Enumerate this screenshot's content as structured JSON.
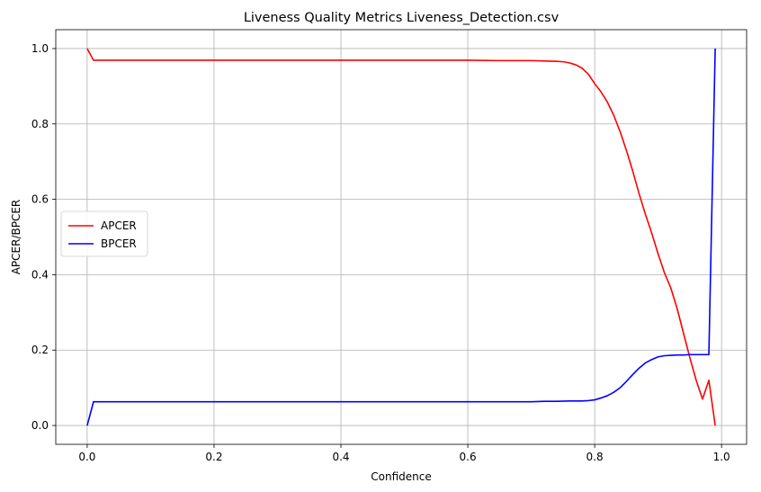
{
  "chart_data": {
    "type": "line",
    "title": "Liveness Quality Metrics Liveness_Detection.csv",
    "xlabel": "Confidence",
    "ylabel": "APCER/BPCER",
    "xlim": [
      -0.0495,
      1.0395
    ],
    "ylim": [
      -0.05,
      1.05
    ],
    "xticks": [
      0.0,
      0.2,
      0.4,
      0.6,
      0.8,
      1.0
    ],
    "xtick_labels": [
      "0.0",
      "0.2",
      "0.4",
      "0.6",
      "0.8",
      "1.0"
    ],
    "yticks": [
      0.0,
      0.2,
      0.4,
      0.6,
      0.8,
      1.0
    ],
    "ytick_labels": [
      "0.0",
      "0.2",
      "0.4",
      "0.6",
      "0.8",
      "1.0"
    ],
    "grid": true,
    "legend_position": "center-left",
    "series": [
      {
        "name": "APCER",
        "color": "#ff0000",
        "x": [
          0.0,
          0.01,
          0.1,
          0.2,
          0.3,
          0.4,
          0.5,
          0.6,
          0.65,
          0.7,
          0.72,
          0.74,
          0.75,
          0.76,
          0.77,
          0.78,
          0.79,
          0.8,
          0.81,
          0.82,
          0.83,
          0.84,
          0.85,
          0.86,
          0.87,
          0.88,
          0.89,
          0.9,
          0.91,
          0.92,
          0.93,
          0.94,
          0.95,
          0.96,
          0.97,
          0.98,
          0.99
        ],
        "y": [
          1.0,
          0.969,
          0.969,
          0.969,
          0.969,
          0.969,
          0.969,
          0.969,
          0.968,
          0.968,
          0.967,
          0.966,
          0.965,
          0.962,
          0.957,
          0.948,
          0.932,
          0.907,
          0.885,
          0.858,
          0.823,
          0.78,
          0.73,
          0.675,
          0.615,
          0.56,
          0.51,
          0.455,
          0.405,
          0.365,
          0.31,
          0.245,
          0.18,
          0.12,
          0.07,
          0.12,
          0.0
        ]
      },
      {
        "name": "BPCER",
        "color": "#0000ff",
        "x": [
          0.0,
          0.01,
          0.1,
          0.2,
          0.3,
          0.4,
          0.5,
          0.6,
          0.65,
          0.7,
          0.72,
          0.74,
          0.76,
          0.78,
          0.79,
          0.8,
          0.81,
          0.82,
          0.83,
          0.84,
          0.85,
          0.86,
          0.87,
          0.88,
          0.89,
          0.9,
          0.91,
          0.92,
          0.93,
          0.94,
          0.95,
          0.96,
          0.97,
          0.98,
          0.99
        ],
        "y": [
          0.0,
          0.063,
          0.063,
          0.063,
          0.063,
          0.063,
          0.063,
          0.063,
          0.063,
          0.063,
          0.064,
          0.064,
          0.065,
          0.065,
          0.066,
          0.068,
          0.073,
          0.079,
          0.088,
          0.1,
          0.117,
          0.135,
          0.152,
          0.166,
          0.175,
          0.182,
          0.185,
          0.186,
          0.187,
          0.187,
          0.188,
          0.188,
          0.188,
          0.188,
          1.0
        ]
      }
    ]
  }
}
